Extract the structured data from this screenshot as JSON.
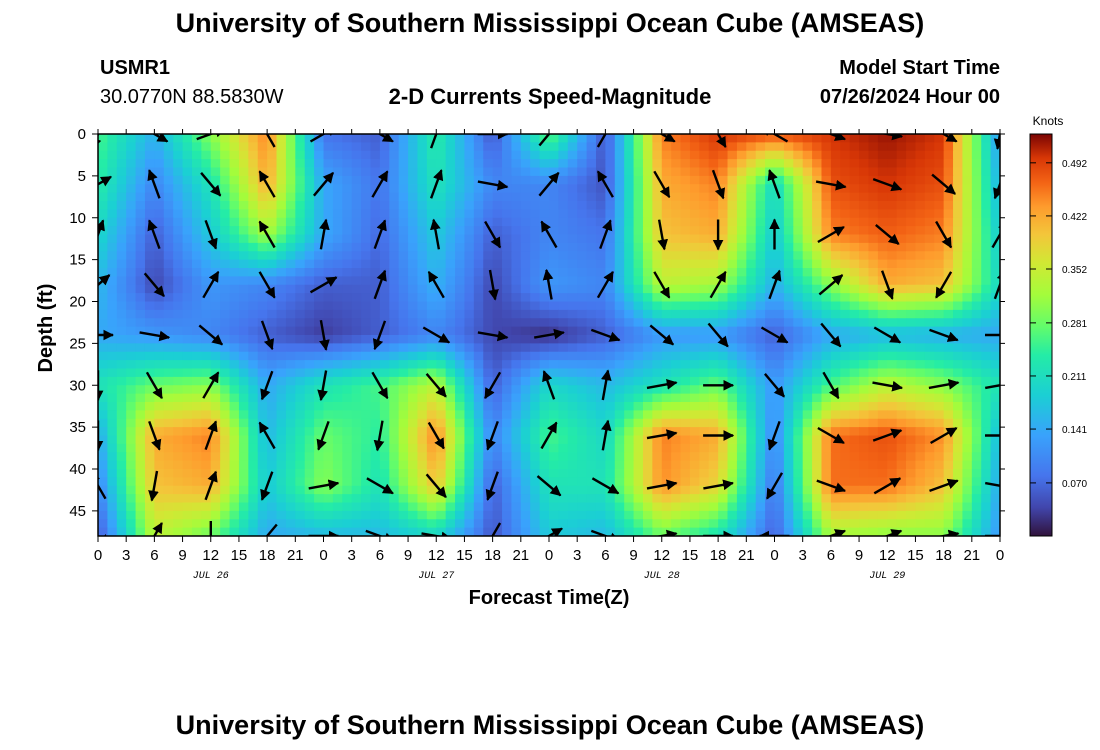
{
  "title": "University of Southern Mississippi Ocean Cube (AMSEAS)",
  "footer_title": "University of Southern Mississippi Ocean Cube (AMSEAS)",
  "station": {
    "id": "USMR1",
    "coords": "30.0770N  88.5830W"
  },
  "model": {
    "label": "Model Start Time",
    "value": "07/26/2024 Hour 00"
  },
  "chart_data": {
    "type": "heatmap",
    "title": "2-D Currents Speed-Magnitude",
    "xlabel": "Forecast Time(Z)",
    "ylabel": "Depth (ft)",
    "x_range_hours": [
      0,
      96
    ],
    "y_range_ft": [
      0,
      48
    ],
    "x_ticks": [
      "0",
      "3",
      "6",
      "9",
      "12",
      "15",
      "18",
      "21",
      "0",
      "3",
      "6",
      "9",
      "12",
      "15",
      "18",
      "21",
      "0",
      "3",
      "6",
      "9",
      "12",
      "15",
      "18",
      "21",
      "0",
      "3",
      "6",
      "9",
      "12",
      "15",
      "18",
      "21",
      "0"
    ],
    "y_ticks": [
      "0",
      "5",
      "10",
      "15",
      "20",
      "25",
      "30",
      "35",
      "40",
      "45"
    ],
    "date_labels": [
      {
        "text": "JUL 26",
        "hour": 12
      },
      {
        "text": "JUL 27",
        "hour": 36
      },
      {
        "text": "JUL 28",
        "hour": 60
      },
      {
        "text": "JUL 29",
        "hour": 84
      }
    ],
    "colorbar": {
      "unit": "Knots",
      "range": [
        0.0,
        0.53
      ],
      "ticks": [
        "0.070",
        "0.141",
        "0.211",
        "0.281",
        "0.352",
        "0.422",
        "0.492"
      ],
      "tick_values": [
        0.07,
        0.141,
        0.211,
        0.281,
        0.352,
        0.422,
        0.492
      ]
    },
    "speed_grid": {
      "hours": [
        0,
        6,
        12,
        18,
        24,
        30,
        36,
        42,
        48,
        54,
        60,
        66,
        72,
        78,
        84,
        90,
        96
      ],
      "depths_ft": [
        0,
        6,
        12,
        18,
        24,
        30,
        36,
        42,
        48
      ],
      "values": [
        [
          0.26,
          0.15,
          0.3,
          0.45,
          0.08,
          0.06,
          0.24,
          0.05,
          0.28,
          0.05,
          0.45,
          0.5,
          0.48,
          0.5,
          0.52,
          0.5,
          0.12
        ],
        [
          0.24,
          0.1,
          0.22,
          0.42,
          0.14,
          0.08,
          0.22,
          0.1,
          0.1,
          0.05,
          0.42,
          0.45,
          0.2,
          0.48,
          0.5,
          0.48,
          0.15
        ],
        [
          0.2,
          0.06,
          0.18,
          0.32,
          0.14,
          0.07,
          0.18,
          0.06,
          0.1,
          0.08,
          0.4,
          0.42,
          0.18,
          0.45,
          0.47,
          0.45,
          0.18
        ],
        [
          0.16,
          0.04,
          0.12,
          0.1,
          0.06,
          0.06,
          0.15,
          0.04,
          0.12,
          0.1,
          0.34,
          0.32,
          0.15,
          0.3,
          0.42,
          0.4,
          0.2
        ],
        [
          0.14,
          0.12,
          0.1,
          0.06,
          0.03,
          0.06,
          0.1,
          0.04,
          0.02,
          0.06,
          0.12,
          0.12,
          0.06,
          0.14,
          0.16,
          0.15,
          0.14
        ],
        [
          0.22,
          0.28,
          0.3,
          0.14,
          0.22,
          0.26,
          0.34,
          0.06,
          0.2,
          0.16,
          0.22,
          0.28,
          0.12,
          0.26,
          0.34,
          0.3,
          0.22
        ],
        [
          0.14,
          0.42,
          0.45,
          0.16,
          0.28,
          0.24,
          0.45,
          0.1,
          0.26,
          0.2,
          0.45,
          0.42,
          0.1,
          0.46,
          0.48,
          0.44,
          0.16
        ],
        [
          0.1,
          0.4,
          0.42,
          0.18,
          0.3,
          0.22,
          0.4,
          0.06,
          0.22,
          0.22,
          0.44,
          0.38,
          0.08,
          0.46,
          0.46,
          0.4,
          0.14
        ],
        [
          0.05,
          0.34,
          0.28,
          0.14,
          0.16,
          0.16,
          0.2,
          0.05,
          0.18,
          0.16,
          0.28,
          0.22,
          0.06,
          0.32,
          0.3,
          0.3,
          0.12
        ]
      ]
    },
    "vector_grid": {
      "hours": [
        0,
        6,
        12,
        18,
        24,
        30,
        36,
        42,
        48,
        54,
        60,
        66,
        72,
        78,
        84,
        90,
        96
      ],
      "depths_ft": [
        0,
        6,
        12,
        18,
        24,
        30,
        36,
        42,
        48
      ],
      "direction_deg": [
        [
          200,
          120,
          70,
          330,
          60,
          120,
          20,
          90,
          40,
          30,
          120,
          150,
          300,
          110,
          100,
          120,
          190
        ],
        [
          60,
          340,
          140,
          330,
          40,
          30,
          20,
          100,
          40,
          330,
          150,
          160,
          340,
          100,
          110,
          130,
          200
        ],
        [
          20,
          340,
          160,
          330,
          10,
          20,
          350,
          150,
          330,
          20,
          170,
          180,
          360,
          60,
          130,
          150,
          30
        ],
        [
          50,
          140,
          30,
          150,
          60,
          20,
          330,
          170,
          350,
          30,
          150,
          30,
          20,
          50,
          160,
          210,
          20
        ],
        [
          90,
          100,
          130,
          160,
          170,
          200,
          120,
          100,
          80,
          110,
          130,
          140,
          120,
          140,
          120,
          110,
          90
        ],
        [
          180,
          150,
          30,
          200,
          190,
          150,
          140,
          210,
          340,
          10,
          80,
          90,
          140,
          150,
          100,
          80,
          80
        ],
        [
          180,
          160,
          20,
          330,
          200,
          190,
          150,
          200,
          30,
          10,
          80,
          90,
          200,
          120,
          70,
          60,
          90
        ],
        [
          330,
          190,
          20,
          200,
          80,
          120,
          140,
          200,
          130,
          120,
          80,
          80,
          210,
          110,
          60,
          70,
          100
        ],
        [
          120,
          30,
          180,
          220,
          90,
          110,
          100,
          210,
          60,
          110,
          80,
          90,
          270,
          70,
          70,
          80,
          90
        ]
      ]
    }
  }
}
